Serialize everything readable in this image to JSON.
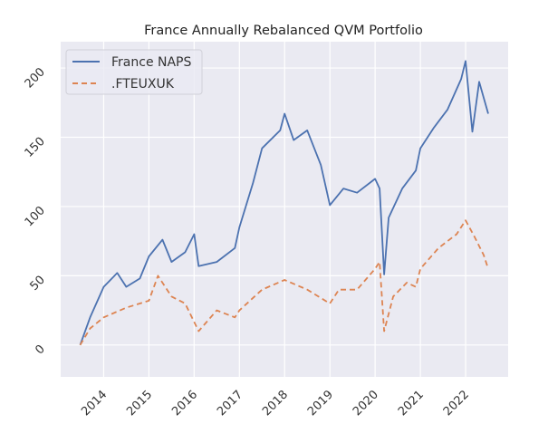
{
  "chart_data": {
    "type": "line",
    "title": "France Annually Rebalanced QVM Portfolio",
    "xlabel": "",
    "ylabel": "",
    "xlim": [
      2013.05,
      2022.94
    ],
    "ylim": [
      -23,
      219
    ],
    "grid": true,
    "legend_position": "top-left",
    "x_ticks": [
      2014,
      2015,
      2016,
      2017,
      2018,
      2019,
      2020,
      2021,
      2022
    ],
    "x_tick_labels": [
      "2014",
      "2015",
      "2016",
      "2017",
      "2018",
      "2019",
      "2020",
      "2021",
      "2022"
    ],
    "y_ticks": [
      0,
      50,
      100,
      150,
      200
    ],
    "y_tick_labels": [
      "0",
      "50",
      "100",
      "150",
      "200"
    ],
    "series": [
      {
        "name": "France NAPS",
        "color": "#4c72b0",
        "style": "solid",
        "x": [
          2013.48,
          2013.7,
          2014.0,
          2014.3,
          2014.5,
          2014.8,
          2015.0,
          2015.3,
          2015.5,
          2015.8,
          2016.0,
          2016.1,
          2016.5,
          2016.9,
          2017.0,
          2017.3,
          2017.5,
          2017.9,
          2018.0,
          2018.2,
          2018.5,
          2018.8,
          2019.0,
          2019.3,
          2019.6,
          2020.0,
          2020.1,
          2020.2,
          2020.3,
          2020.6,
          2020.9,
          2021.0,
          2021.3,
          2021.6,
          2021.9,
          2022.0,
          2022.15,
          2022.3,
          2022.5
        ],
        "y": [
          0,
          20,
          42,
          52,
          42,
          48,
          64,
          76,
          60,
          67,
          80,
          57,
          60,
          70,
          85,
          117,
          142,
          155,
          167,
          148,
          155,
          130,
          101,
          113,
          110,
          120,
          113,
          51,
          92,
          113,
          126,
          142,
          157,
          170,
          192,
          205,
          154,
          190,
          167
        ]
      },
      {
        "name": ".FTEUXUK",
        "color": "#dd8452",
        "style": "dashed",
        "x": [
          2013.48,
          2013.7,
          2014.0,
          2014.5,
          2015.0,
          2015.2,
          2015.5,
          2015.8,
          2016.1,
          2016.5,
          2016.9,
          2017.0,
          2017.5,
          2018.0,
          2018.5,
          2019.0,
          2019.2,
          2019.6,
          2020.0,
          2020.1,
          2020.2,
          2020.4,
          2020.7,
          2020.9,
          2021.0,
          2021.4,
          2021.8,
          2022.0,
          2022.2,
          2022.4,
          2022.5
        ],
        "y": [
          0,
          12,
          20,
          27,
          32,
          50,
          35,
          30,
          10,
          25,
          20,
          25,
          40,
          47,
          40,
          30,
          40,
          40,
          55,
          60,
          10,
          35,
          45,
          42,
          55,
          70,
          80,
          90,
          78,
          65,
          55
        ]
      }
    ]
  }
}
